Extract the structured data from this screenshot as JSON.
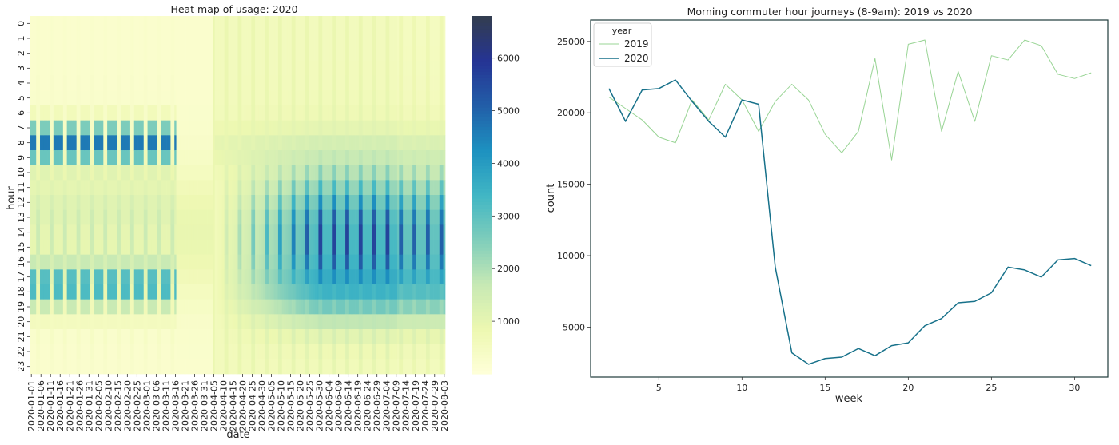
{
  "chart_data": [
    {
      "type": "heatmap",
      "title": "Heat map of usage: 2020",
      "xlabel": "date",
      "ylabel": "hour",
      "date_labels": [
        "2020-01-01",
        "2020-01-06",
        "2020-01-11",
        "2020-01-16",
        "2020-01-21",
        "2020-01-26",
        "2020-01-31",
        "2020-02-05",
        "2020-02-10",
        "2020-02-15",
        "2020-02-20",
        "2020-02-25",
        "2020-03-01",
        "2020-03-06",
        "2020-03-11",
        "2020-03-16",
        "2020-03-21",
        "2020-03-26",
        "2020-03-31",
        "2020-04-05",
        "2020-04-10",
        "2020-04-15",
        "2020-04-20",
        "2020-04-25",
        "2020-04-30",
        "2020-05-05",
        "2020-05-10",
        "2020-05-15",
        "2020-05-20",
        "2020-05-25",
        "2020-05-30",
        "2020-06-04",
        "2020-06-09",
        "2020-06-14",
        "2020-06-19",
        "2020-06-24",
        "2020-06-29",
        "2020-07-04",
        "2020-07-09",
        "2020-07-14",
        "2020-07-19",
        "2020-07-24",
        "2020-07-29",
        "2020-08-03"
      ],
      "hour_labels": [
        "0",
        "1",
        "2",
        "3",
        "4",
        "5",
        "6",
        "7",
        "8",
        "9",
        "10",
        "11",
        "12",
        "13",
        "14",
        "15",
        "16",
        "17",
        "18",
        "19",
        "20",
        "21",
        "22",
        "23"
      ],
      "colorbar_ticks": [
        1000,
        2000,
        3000,
        4000,
        5000,
        6000
      ],
      "colorbar_range": [
        0,
        6800
      ],
      "colormap": [
        "#ffffd9",
        "#edf8b1",
        "#c7e9b4",
        "#7fcdbb",
        "#41b6c4",
        "#1d91c0",
        "#225ea8",
        "#253494",
        "#323d4e"
      ]
    },
    {
      "type": "line",
      "title": "Morning commuter hour journeys (8-9am): 2019 vs 2020",
      "xlabel": "week",
      "ylabel": "count",
      "xlim": [
        0.9,
        32.0
      ],
      "ylim": [
        1500,
        26500
      ],
      "xticks": [
        5,
        10,
        15,
        20,
        25,
        30
      ],
      "yticks": [
        5000,
        10000,
        15000,
        20000,
        25000
      ],
      "legend": {
        "title": "year",
        "position": "top-left"
      },
      "x": [
        2,
        3,
        4,
        5,
        6,
        7,
        8,
        9,
        10,
        11,
        12,
        13,
        14,
        15,
        16,
        17,
        18,
        19,
        20,
        21,
        22,
        23,
        24,
        25,
        26,
        27,
        28,
        29,
        30,
        31
      ],
      "series": [
        {
          "name": "2019",
          "color": "#98d494",
          "values": [
            21100,
            20300,
            19500,
            18300,
            17900,
            20900,
            19500,
            22000,
            20900,
            18700,
            20800,
            22000,
            20900,
            18500,
            17200,
            18700,
            23800,
            16700,
            24800,
            25100,
            18700,
            22900,
            19400,
            24000,
            23700,
            25100,
            24700,
            22700,
            22400,
            22800
          ]
        },
        {
          "name": "2020",
          "color": "#17718a",
          "values": [
            21700,
            19400,
            21600,
            21700,
            22300,
            20800,
            19400,
            18300,
            20900,
            20600,
            9200,
            3200,
            2400,
            2800,
            2900,
            3500,
            3000,
            3700,
            3900,
            5100,
            5600,
            6700,
            6800,
            7400,
            9200,
            9000,
            8500,
            9700,
            9800,
            9300
          ]
        }
      ]
    }
  ]
}
